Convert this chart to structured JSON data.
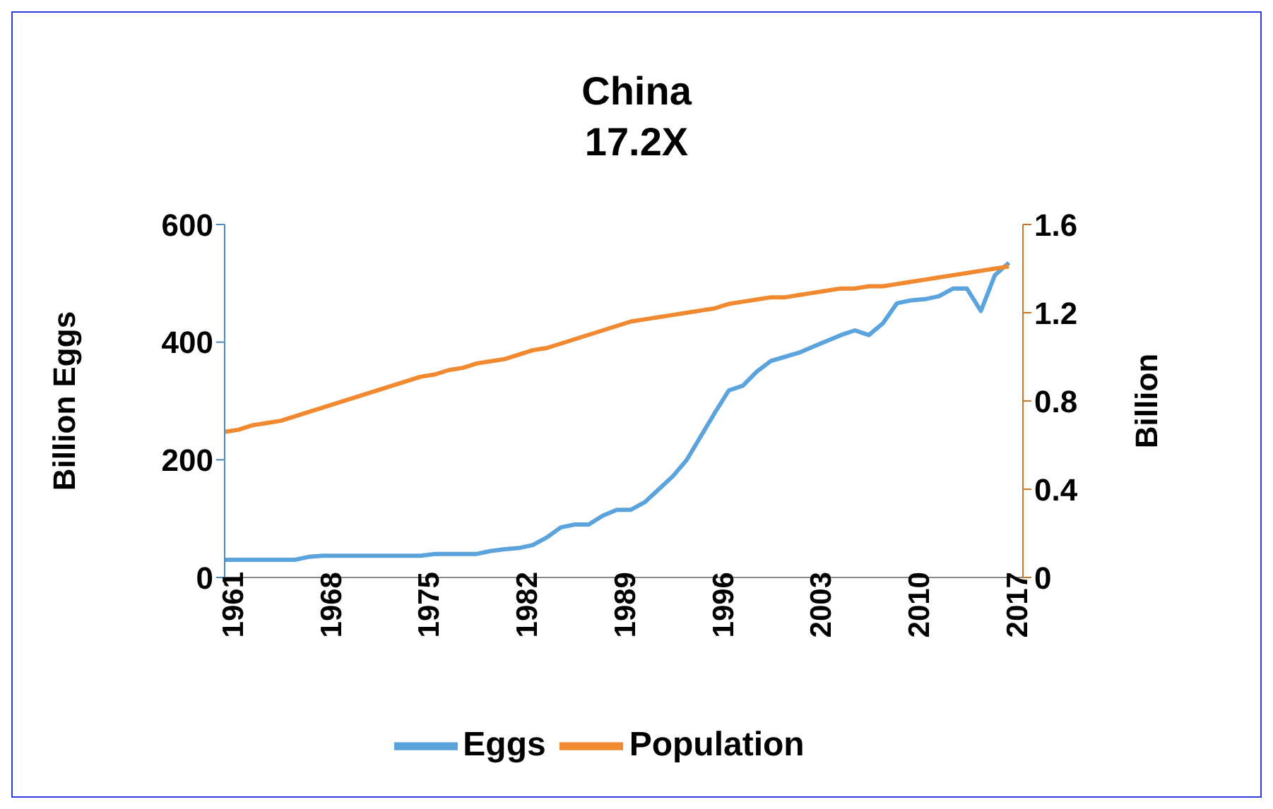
{
  "chart_data": {
    "type": "line",
    "title": "China\n17.2X",
    "ylabel": "Billion Eggs",
    "y2label": "Billion",
    "x": [
      1961,
      1962,
      1963,
      1964,
      1965,
      1966,
      1967,
      1968,
      1969,
      1970,
      1971,
      1972,
      1973,
      1974,
      1975,
      1976,
      1977,
      1978,
      1979,
      1980,
      1981,
      1982,
      1983,
      1984,
      1985,
      1986,
      1987,
      1988,
      1989,
      1990,
      1991,
      1992,
      1993,
      1994,
      1995,
      1996,
      1997,
      1998,
      1999,
      2000,
      2001,
      2002,
      2003,
      2004,
      2005,
      2006,
      2007,
      2008,
      2009,
      2010,
      2011,
      2012,
      2013,
      2014,
      2015,
      2016,
      2017
    ],
    "series": [
      {
        "name": "Eggs",
        "color": "#5ba3dc",
        "values": [
          30,
          30,
          30,
          30,
          30,
          30,
          35,
          37,
          37,
          37,
          37,
          37,
          37,
          37,
          37,
          40,
          40,
          40,
          40,
          45,
          48,
          50,
          55,
          68,
          85,
          90,
          90,
          105,
          115,
          115,
          128,
          150,
          172,
          200,
          240,
          280,
          318,
          326,
          350,
          368,
          375,
          382,
          392,
          402,
          412,
          420,
          412,
          432,
          466,
          471,
          473,
          478,
          491,
          491,
          453,
          514,
          535
        ]
      },
      {
        "name": "Population",
        "color": "#f0892f",
        "axis": "y2",
        "values": [
          0.66,
          0.67,
          0.69,
          0.7,
          0.71,
          0.73,
          0.75,
          0.77,
          0.79,
          0.81,
          0.83,
          0.85,
          0.87,
          0.89,
          0.91,
          0.92,
          0.94,
          0.95,
          0.97,
          0.98,
          0.99,
          1.01,
          1.03,
          1.04,
          1.06,
          1.08,
          1.1,
          1.12,
          1.14,
          1.16,
          1.17,
          1.18,
          1.19,
          1.2,
          1.21,
          1.22,
          1.24,
          1.25,
          1.26,
          1.27,
          1.27,
          1.28,
          1.29,
          1.3,
          1.31,
          1.31,
          1.32,
          1.32,
          1.33,
          1.34,
          1.35,
          1.36,
          1.37,
          1.38,
          1.39,
          1.4,
          1.41
        ]
      }
    ],
    "xlim": [
      1961,
      2018
    ],
    "xticks": [
      1961,
      1968,
      1975,
      1982,
      1989,
      1996,
      2003,
      2010,
      2017
    ],
    "ylim": [
      0,
      600
    ],
    "yticks": [
      0,
      200,
      400,
      600
    ],
    "y2lim": [
      0,
      1.6
    ],
    "y2ticks": [
      0,
      0.4,
      0.8,
      1.2,
      1.6
    ],
    "grid": false,
    "legend": "bottom",
    "marker": "none",
    "line_style": "solid"
  }
}
